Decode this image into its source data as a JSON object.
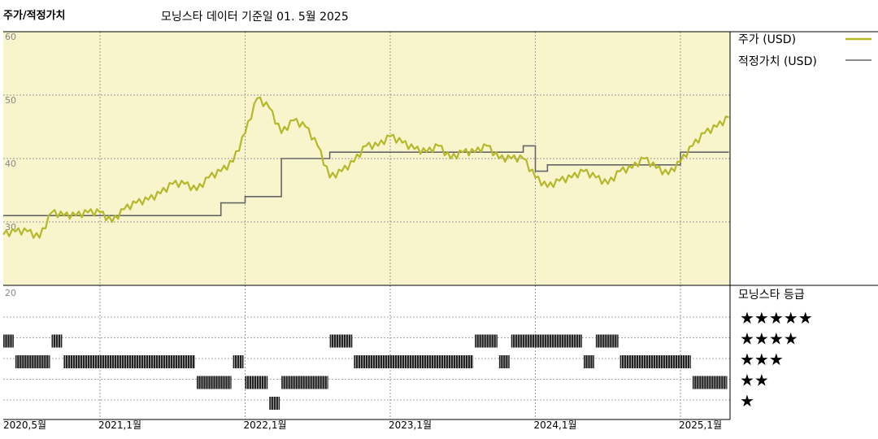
{
  "header": {
    "title": "주가/적정가치",
    "subtitle": "모닝스타 데이터 기준일 01. 5월 2025"
  },
  "legend": {
    "price_label": "주가 (USD)",
    "fair_value_label": "적정가치 (USD)",
    "rating_title": "모닝스타 등급"
  },
  "colors": {
    "price": "#b5b82a",
    "fair_value": "#666666",
    "panel_bg": "#f8f4cc",
    "rating_bar": "#222222"
  },
  "chart_data": [
    {
      "type": "line",
      "title": "주가/적정가치",
      "xlabel": "",
      "ylabel": "",
      "x_tick_labels": [
        "2020,5월",
        "2021,1월",
        "2022,1월",
        "2023,1월",
        "2024,1월",
        "2025,1월"
      ],
      "x_tick_dates": [
        "2020-05",
        "2021-01",
        "2022-01",
        "2023-01",
        "2024-01",
        "2025-01"
      ],
      "y_ticks": [
        30,
        40,
        50,
        60
      ],
      "ylim": [
        20,
        60
      ],
      "grid": true,
      "legend_position": "right",
      "series": [
        {
          "name": "주가 (USD)",
          "x": [
            "2020-05",
            "2020-06",
            "2020-07",
            "2020-08",
            "2020-09",
            "2020-10",
            "2020-11",
            "2020-12",
            "2021-01",
            "2021-02",
            "2021-03",
            "2021-04",
            "2021-05",
            "2021-06",
            "2021-07",
            "2021-08",
            "2021-09",
            "2021-10",
            "2021-11",
            "2021-12",
            "2022-01",
            "2022-02",
            "2022-03",
            "2022-04",
            "2022-05",
            "2022-06",
            "2022-07",
            "2022-08",
            "2022-09",
            "2022-10",
            "2022-11",
            "2022-12",
            "2023-01",
            "2023-02",
            "2023-03",
            "2023-04",
            "2023-05",
            "2023-06",
            "2023-07",
            "2023-08",
            "2023-09",
            "2023-10",
            "2023-11",
            "2023-12",
            "2024-01",
            "2024-02",
            "2024-03",
            "2024-04",
            "2024-05",
            "2024-06",
            "2024-07",
            "2024-08",
            "2024-09",
            "2024-10",
            "2024-11",
            "2024-12",
            "2025-01",
            "2025-02",
            "2025-03",
            "2025-04",
            "2025-05"
          ],
          "values": [
            28,
            28.5,
            28.5,
            27.5,
            31.5,
            31,
            31,
            31.5,
            31.5,
            30,
            32,
            33,
            33.5,
            34.5,
            36,
            36,
            35,
            37,
            38,
            39.5,
            44,
            49.5,
            48,
            44,
            46,
            45,
            42,
            37,
            38,
            39.5,
            42,
            42,
            43.5,
            42.5,
            41.5,
            41,
            42,
            40,
            41,
            41,
            42,
            40,
            40,
            40,
            37,
            35.5,
            36.5,
            37,
            38,
            37,
            36,
            38,
            38.5,
            40,
            38.5,
            37.5,
            39.5,
            42,
            44,
            45,
            46.5
          ]
        },
        {
          "name": "적정가치 (USD)",
          "type": "step",
          "x": [
            "2020-05",
            "2021-10",
            "2021-11",
            "2022-01",
            "2022-04",
            "2022-08",
            "2023-08",
            "2023-12",
            "2024-01",
            "2024-02",
            "2024-10",
            "2024-12",
            "2025-01",
            "2025-05"
          ],
          "values": [
            31,
            31,
            33,
            34,
            40,
            41,
            41,
            42,
            38,
            39,
            39,
            39,
            41,
            41
          ]
        }
      ]
    },
    {
      "type": "table",
      "title": "모닝스타 등급",
      "rating_rows": [
        "5",
        "4",
        "3",
        "2",
        "1"
      ],
      "rating_labels": [
        "★★★★★",
        "★★★★",
        "★★★",
        "★★",
        "★"
      ],
      "rating_periods": [
        {
          "stars": 4,
          "start": "2020-05",
          "end": "2020-06"
        },
        {
          "stars": 3,
          "start": "2020-06",
          "end": "2020-09"
        },
        {
          "stars": 4,
          "start": "2020-09",
          "end": "2020-10"
        },
        {
          "stars": 3,
          "start": "2020-10",
          "end": "2021-09"
        },
        {
          "stars": 2,
          "start": "2021-09",
          "end": "2021-12"
        },
        {
          "stars": 3,
          "start": "2021-12",
          "end": "2022-01"
        },
        {
          "stars": 2,
          "start": "2022-01",
          "end": "2022-03"
        },
        {
          "stars": 1,
          "start": "2022-03",
          "end": "2022-04"
        },
        {
          "stars": 2,
          "start": "2022-04",
          "end": "2022-08"
        },
        {
          "stars": 4,
          "start": "2022-08",
          "end": "2022-10"
        },
        {
          "stars": 3,
          "start": "2022-10",
          "end": "2023-08"
        },
        {
          "stars": 4,
          "start": "2023-08",
          "end": "2023-10"
        },
        {
          "stars": 3,
          "start": "2023-10",
          "end": "2023-11"
        },
        {
          "stars": 4,
          "start": "2023-11",
          "end": "2024-05"
        },
        {
          "stars": 3,
          "start": "2024-05",
          "end": "2024-06"
        },
        {
          "stars": 4,
          "start": "2024-06",
          "end": "2024-08"
        },
        {
          "stars": 3,
          "start": "2024-08",
          "end": "2025-02"
        },
        {
          "stars": 2,
          "start": "2025-02",
          "end": "2025-05"
        }
      ]
    }
  ]
}
